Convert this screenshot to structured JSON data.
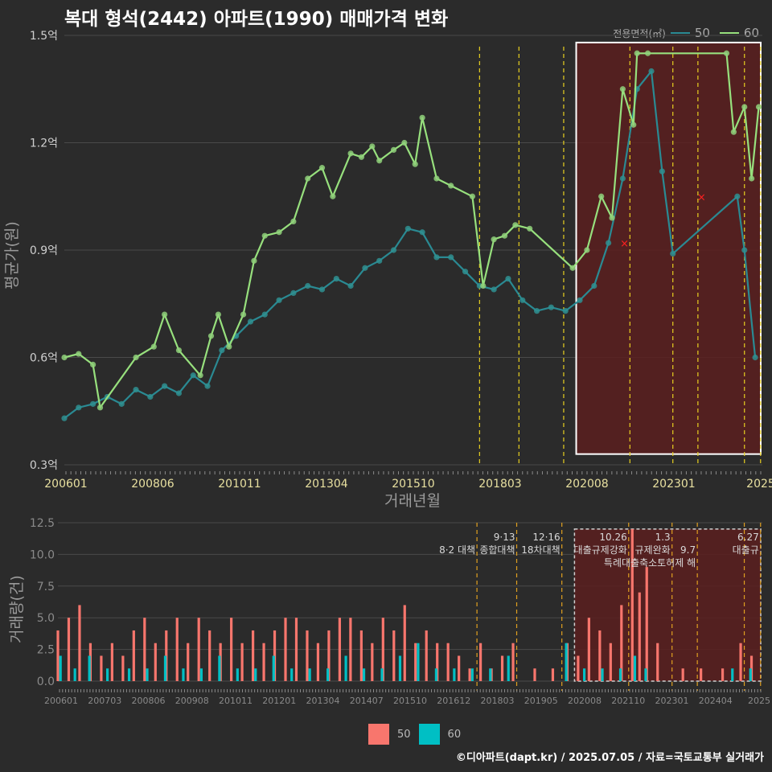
{
  "title": "복대 형석(2442) 아파트(1990) 매매가격 변화",
  "caption": "©디아파트(dapt.kr) / 2025.07.05 / 자료=국토교통부 실거래가",
  "colors": {
    "background": "#2b2b2b",
    "grid": "#4a4a4a",
    "s50_line": "#2a8a93",
    "s50_point": "#2f8f90",
    "s60_line": "#97e07d",
    "s60_point": "#8fd07a",
    "bar50": "#f8766d",
    "bar60": "#00bfc4",
    "highlight_fill": "#5a1f1f",
    "highlight_border": "#ffffff",
    "vline": "#e8d020",
    "marker_x": "#ff2020"
  },
  "chart_data": [
    {
      "type": "line",
      "title": "복대 형석(2442) 아파트(1990) 매매가격 변화",
      "xlabel": "거래년월",
      "ylabel": "평균가(원)",
      "x_tick_labels": [
        "200601",
        "200806",
        "201011",
        "201304",
        "201510",
        "201803",
        "202008",
        "202301",
        "2025"
      ],
      "x_range": [
        2006.0,
        2025.5
      ],
      "y_tick_labels": [
        "0.3억",
        "0.6억",
        "0.9억",
        "1.2억",
        "1.5억"
      ],
      "ylim": [
        0.3,
        1.5
      ],
      "grid": true,
      "legend": {
        "title": "전용면적(㎡)",
        "position": "top-right"
      },
      "series": [
        {
          "name": "50",
          "x": [
            2006.0,
            2006.4,
            2006.8,
            2007.2,
            2007.6,
            2008.0,
            2008.4,
            2008.8,
            2009.2,
            2009.6,
            2010.0,
            2010.4,
            2010.8,
            2011.2,
            2011.6,
            2012.0,
            2012.4,
            2012.8,
            2013.2,
            2013.6,
            2014.0,
            2014.4,
            2014.8,
            2015.2,
            2015.6,
            2016.0,
            2016.4,
            2016.8,
            2017.2,
            2017.6,
            2018.0,
            2018.4,
            2018.8,
            2019.2,
            2019.6,
            2020.0,
            2020.4,
            2020.8,
            2021.2,
            2021.6,
            2022.0,
            2022.4,
            2022.7,
            2023.0,
            2024.8,
            2025.0,
            2025.3
          ],
          "y": [
            0.43,
            0.46,
            0.47,
            0.49,
            0.47,
            0.51,
            0.49,
            0.52,
            0.5,
            0.55,
            0.52,
            0.62,
            0.66,
            0.7,
            0.72,
            0.76,
            0.78,
            0.8,
            0.79,
            0.82,
            0.8,
            0.85,
            0.87,
            0.9,
            0.96,
            0.95,
            0.88,
            0.88,
            0.84,
            0.8,
            0.79,
            0.82,
            0.76,
            0.73,
            0.74,
            0.73,
            0.76,
            0.8,
            0.92,
            1.1,
            1.35,
            1.4,
            1.12,
            0.89,
            1.05,
            0.9,
            0.6
          ]
        },
        {
          "name": "60",
          "x": [
            2006.0,
            2006.4,
            2006.8,
            2007.0,
            2008.0,
            2008.5,
            2008.8,
            2009.2,
            2009.8,
            2010.1,
            2010.3,
            2010.6,
            2011.0,
            2011.3,
            2011.6,
            2012.0,
            2012.4,
            2012.8,
            2013.2,
            2013.5,
            2014.0,
            2014.3,
            2014.6,
            2014.8,
            2015.2,
            2015.5,
            2015.8,
            2016.0,
            2016.4,
            2016.8,
            2017.4,
            2017.7,
            2018.0,
            2018.3,
            2018.6,
            2019.0,
            2020.2,
            2020.6,
            2021.0,
            2021.3,
            2021.6,
            2021.9,
            2022.0,
            2022.3,
            2024.5,
            2024.7,
            2025.0,
            2025.2,
            2025.4
          ],
          "y": [
            0.6,
            0.61,
            0.58,
            0.46,
            0.6,
            0.63,
            0.72,
            0.62,
            0.55,
            0.66,
            0.72,
            0.63,
            0.72,
            0.87,
            0.94,
            0.95,
            0.98,
            1.1,
            1.13,
            1.05,
            1.17,
            1.16,
            1.19,
            1.15,
            1.18,
            1.2,
            1.14,
            1.27,
            1.1,
            1.08,
            1.05,
            0.8,
            0.93,
            0.94,
            0.97,
            0.96,
            0.85,
            0.9,
            1.05,
            0.99,
            1.35,
            1.25,
            1.45,
            1.45,
            1.45,
            1.23,
            1.3,
            1.1,
            1.3
          ]
        }
      ],
      "highlight_region": {
        "x": [
          2020.3,
          2025.5
        ],
        "y": [
          0.33,
          1.48
        ]
      },
      "policy_lines_x": [
        2017.6,
        2018.7,
        2019.95,
        2021.8,
        2023.0,
        2023.7,
        2025.0,
        2025.45
      ],
      "markers": [
        {
          "x": 2021.65,
          "y": 0.92,
          "symbol": "×"
        },
        {
          "x": 2023.8,
          "y": 1.05,
          "symbol": "×"
        }
      ]
    },
    {
      "type": "bar",
      "ylabel": "거래량(건)",
      "x_tick_labels": [
        "200601",
        "200703",
        "200806",
        "200908",
        "201011",
        "201201",
        "201304",
        "201407",
        "201510",
        "201612",
        "201803",
        "201905",
        "202008",
        "202110",
        "202301",
        "202404",
        "2025"
      ],
      "x_range": [
        2006.0,
        2025.5
      ],
      "y_tick_labels": [
        "0.0",
        "2.5",
        "5.0",
        "7.5",
        "10.0",
        "12.5"
      ],
      "ylim": [
        0,
        12.5
      ],
      "grid": true,
      "legend": {
        "position": "bottom"
      },
      "series": [
        {
          "name": "50",
          "x": [
            2006.0,
            2006.3,
            2006.6,
            2006.9,
            2007.2,
            2007.5,
            2007.8,
            2008.1,
            2008.4,
            2008.7,
            2009.0,
            2009.3,
            2009.6,
            2009.9,
            2010.2,
            2010.5,
            2010.8,
            2011.1,
            2011.4,
            2011.7,
            2012.0,
            2012.3,
            2012.6,
            2012.9,
            2013.2,
            2013.5,
            2013.8,
            2014.1,
            2014.4,
            2014.7,
            2015.0,
            2015.3,
            2015.6,
            2015.9,
            2016.2,
            2016.5,
            2016.8,
            2017.1,
            2017.4,
            2017.7,
            2018.0,
            2018.3,
            2018.6,
            2019.2,
            2019.7,
            2020.1,
            2020.4,
            2020.7,
            2021.0,
            2021.3,
            2021.6,
            2021.9,
            2022.1,
            2022.3,
            2022.6,
            2023.3,
            2023.8,
            2024.4,
            2024.9,
            2025.2
          ],
          "values": [
            4,
            5,
            6,
            3,
            2,
            3,
            2,
            4,
            5,
            3,
            4,
            5,
            3,
            5,
            4,
            3,
            5,
            3,
            4,
            3,
            4,
            5,
            5,
            4,
            3,
            4,
            5,
            5,
            4,
            3,
            5,
            4,
            6,
            3,
            4,
            3,
            3,
            2,
            1,
            3,
            1,
            2,
            3,
            1,
            1,
            3,
            2,
            5,
            4,
            3,
            6,
            12,
            7,
            9,
            3,
            1,
            1,
            1,
            3,
            2
          ]
        },
        {
          "name": "60",
          "x": [
            2006.0,
            2006.4,
            2006.8,
            2007.3,
            2007.9,
            2008.4,
            2008.9,
            2009.4,
            2009.9,
            2010.4,
            2010.9,
            2011.4,
            2011.9,
            2012.4,
            2012.9,
            2013.4,
            2013.9,
            2014.4,
            2014.9,
            2015.4,
            2015.9,
            2016.4,
            2016.9,
            2017.4,
            2017.9,
            2018.4,
            2020.0,
            2020.5,
            2021.0,
            2021.5,
            2021.9,
            2022.2,
            2024.6,
            2025.1
          ],
          "values": [
            2,
            1,
            2,
            1,
            1,
            1,
            2,
            1,
            1,
            2,
            1,
            1,
            2,
            1,
            1,
            1,
            2,
            1,
            1,
            2,
            3,
            1,
            1,
            1,
            1,
            2,
            3,
            1,
            1,
            1,
            2,
            1,
            1,
            1
          ]
        }
      ],
      "highlight_region": {
        "x": [
          2020.3,
          2025.5
        ],
        "y": [
          0,
          12.0
        ]
      },
      "policy_lines_x": [
        2017.6,
        2018.7,
        2019.95,
        2021.8,
        2023.0,
        2023.7,
        2025.0,
        2025.45
      ],
      "annotations": [
        {
          "label": "8·2 대책",
          "x": 2017.6,
          "row": 1
        },
        {
          "label": "9·13",
          "x": 2018.7,
          "row": 0
        },
        {
          "label": "종합대책",
          "x": 2018.7,
          "row": 1
        },
        {
          "label": "12·16",
          "x": 2019.95,
          "row": 0
        },
        {
          "label": "18차대책",
          "x": 2019.95,
          "row": 1
        },
        {
          "label": "10.26",
          "x": 2021.8,
          "row": 0
        },
        {
          "label": "대출규제강화",
          "x": 2021.8,
          "row": 1
        },
        {
          "label": "1.3",
          "x": 2023.0,
          "row": 0
        },
        {
          "label": "규제완화",
          "x": 2023.0,
          "row": 1
        },
        {
          "label": "9.7",
          "x": 2023.7,
          "row": 1
        },
        {
          "label": "특례대출축소토허제 해",
          "x": 2023.7,
          "row": 2
        },
        {
          "label": "6.27",
          "x": 2025.45,
          "row": 0
        },
        {
          "label": "대출규",
          "x": 2025.45,
          "row": 1
        }
      ]
    }
  ]
}
